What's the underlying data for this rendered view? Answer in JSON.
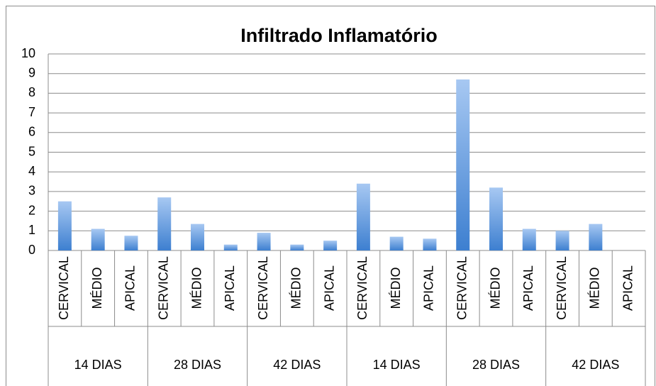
{
  "chart_data": {
    "type": "bar",
    "title": "Infiltrado Inflamatório",
    "groups": [
      "14 DIAS",
      "28 DIAS",
      "42 DIAS",
      "14 DIAS",
      "28 DIAS",
      "42 DIAS"
    ],
    "categories": [
      "CERVICAL",
      "MÉDIO",
      "APICAL",
      "CERVICAL",
      "MÉDIO",
      "APICAL",
      "CERVICAL",
      "MÉDIO",
      "APICAL",
      "CERVICAL",
      "MÉDIO",
      "APICAL",
      "CERVICAL",
      "MÉDIO",
      "APICAL",
      "CERVICAL",
      "MÉDIO",
      "APICAL"
    ],
    "values": [
      2.5,
      1.1,
      0.75,
      2.7,
      1.35,
      0.3,
      0.9,
      0.3,
      0.5,
      3.4,
      0.7,
      0.6,
      8.7,
      3.2,
      1.1,
      1.0,
      1.35,
      0
    ],
    "color": "#4f8fd8",
    "ylim": [
      0,
      10
    ],
    "yticks": [
      0,
      1,
      2,
      3,
      4,
      5,
      6,
      7,
      8,
      9,
      10
    ],
    "grid": true
  }
}
